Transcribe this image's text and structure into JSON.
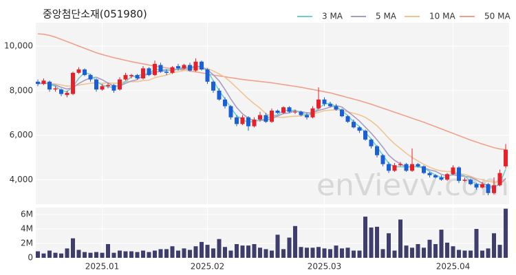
{
  "chart_data": [
    {
      "type": "candlestick",
      "title": "중앙첨단소재(051980)",
      "watermark": "enVievv.com",
      "up_color": "#e8202a",
      "down_color": "#1a5fd6",
      "legend": "top-right",
      "grid": true,
      "open": [
        8400,
        8300,
        8400,
        8050,
        8050,
        7800,
        7850,
        8800,
        8950,
        8700,
        8500,
        8050,
        8200,
        8250,
        8050,
        8500,
        8650,
        8700,
        8550,
        9000,
        8700,
        9150,
        8850,
        8800,
        9100,
        9000,
        9150,
        8900,
        9300,
        8950,
        8400,
        8000,
        7600,
        7300,
        6800,
        6500,
        6800,
        6400,
        6700,
        6900,
        6600,
        7100,
        7000,
        7250,
        7050,
        7050,
        6900,
        6800,
        7200,
        7600,
        7400,
        7300,
        7150,
        6850,
        6600,
        6350,
        6200,
        5800,
        5500,
        5100,
        4700,
        4400,
        4650,
        4700,
        4400,
        4700,
        4600,
        4300,
        4200,
        4100,
        4000,
        4250,
        4550,
        3950,
        4000,
        3800,
        3650,
        3800,
        3400,
        3750,
        4600
      ],
      "high": [
        8500,
        8550,
        8450,
        8200,
        8100,
        8000,
        8850,
        9050,
        9000,
        8750,
        8550,
        8300,
        8350,
        8300,
        8600,
        8800,
        8750,
        8750,
        9100,
        9050,
        9350,
        9250,
        8950,
        9100,
        9200,
        9200,
        9250,
        9450,
        9350,
        9000,
        8450,
        8100,
        7700,
        7350,
        6900,
        6900,
        6850,
        6800,
        7050,
        7000,
        7200,
        7150,
        7300,
        7300,
        7150,
        7100,
        7000,
        7300,
        8150,
        7700,
        7500,
        7400,
        7200,
        6900,
        6700,
        6400,
        6250,
        5850,
        5550,
        5150,
        4800,
        4750,
        4800,
        4750,
        5400,
        4750,
        4650,
        4350,
        4250,
        4200,
        4300,
        4650,
        4600,
        4100,
        4050,
        3850,
        3900,
        3850,
        4100,
        4450,
        5600
      ],
      "low": [
        8200,
        8250,
        7950,
        7950,
        7750,
        7700,
        7800,
        8750,
        8650,
        8400,
        7950,
        8000,
        8100,
        7900,
        8000,
        8450,
        8550,
        8500,
        8500,
        8650,
        8650,
        8800,
        8700,
        8750,
        8900,
        8950,
        8850,
        8850,
        8900,
        8300,
        7900,
        7550,
        7200,
        6700,
        6400,
        6450,
        6200,
        6350,
        6600,
        6550,
        6550,
        6950,
        6950,
        7000,
        6950,
        6850,
        6700,
        6750,
        7150,
        7300,
        7250,
        7100,
        6800,
        6550,
        6300,
        6100,
        5750,
        5400,
        5000,
        4600,
        4300,
        4350,
        4600,
        4350,
        4350,
        4550,
        4250,
        4100,
        4050,
        3950,
        3950,
        4200,
        3850,
        3900,
        3750,
        3550,
        3600,
        3300,
        3350,
        3700,
        4500
      ],
      "close": [
        8300,
        8450,
        8050,
        8100,
        7850,
        7900,
        8800,
        8950,
        8700,
        8500,
        8050,
        8200,
        8250,
        8000,
        8500,
        8700,
        8700,
        8550,
        9000,
        8700,
        9200,
        8850,
        8800,
        9050,
        9000,
        9150,
        8900,
        9300,
        8950,
        8400,
        8000,
        7600,
        7300,
        6800,
        6500,
        6800,
        6400,
        6700,
        6900,
        6600,
        7100,
        7000,
        7250,
        7050,
        7050,
        6900,
        6800,
        7200,
        7600,
        7400,
        7300,
        7150,
        6850,
        6600,
        6350,
        6200,
        5800,
        5500,
        5100,
        4700,
        4400,
        4650,
        4700,
        4400,
        4700,
        4600,
        4300,
        4200,
        4100,
        4000,
        4250,
        4550,
        3950,
        4000,
        3800,
        3650,
        3800,
        3400,
        3750,
        4300,
        5350
      ],
      "series": [
        {
          "name": "3 MA",
          "color": "#6ccfcf",
          "values": [
            8300,
            8380,
            8270,
            8200,
            8000,
            7950,
            8180,
            8550,
            8820,
            8720,
            8420,
            8250,
            8170,
            8150,
            8250,
            8400,
            8630,
            8650,
            8750,
            8750,
            8970,
            8920,
            8950,
            8900,
            8950,
            9070,
            9020,
            9120,
            9050,
            8880,
            8450,
            8000,
            7630,
            7230,
            6870,
            6700,
            6570,
            6630,
            6670,
            6730,
            6870,
            6900,
            7120,
            7100,
            7120,
            7000,
            6920,
            6970,
            7200,
            7400,
            7430,
            7280,
            7100,
            6870,
            6600,
            6380,
            6120,
            5830,
            5470,
            5100,
            4730,
            4580,
            4580,
            4580,
            4600,
            4570,
            4530,
            4370,
            4200,
            4100,
            4120,
            4270,
            4250,
            4170,
            3920,
            3820,
            3750,
            3620,
            3650,
            3820,
            4470
          ]
        },
        {
          "name": "5 MA",
          "color": "#a89bc2",
          "values": [
            8300,
            8350,
            8300,
            8250,
            8150,
            8070,
            8140,
            8320,
            8460,
            8570,
            8600,
            8490,
            8340,
            8200,
            8200,
            8330,
            8430,
            8490,
            8690,
            8730,
            8830,
            8860,
            8910,
            8920,
            8980,
            8970,
            8980,
            9080,
            9060,
            8940,
            8710,
            8440,
            8050,
            7620,
            7240,
            6960,
            6760,
            6640,
            6660,
            6680,
            6740,
            6860,
            6970,
            7000,
            7090,
            7050,
            7010,
            7000,
            7110,
            7180,
            7260,
            7330,
            7260,
            7060,
            6850,
            6630,
            6360,
            6090,
            5790,
            5460,
            5100,
            4870,
            4710,
            4570,
            4570,
            4610,
            4540,
            4440,
            4380,
            4240,
            4170,
            4220,
            4170,
            4150,
            4110,
            3990,
            3840,
            3730,
            3680,
            3780,
            4060
          ]
        },
        {
          "name": "10 MA",
          "color": "#f0c490",
          "values": [
            8300,
            8320,
            8320,
            8300,
            8250,
            8200,
            8210,
            8250,
            8290,
            8330,
            8350,
            8330,
            8350,
            8330,
            8340,
            8420,
            8400,
            8400,
            8450,
            8470,
            8580,
            8640,
            8690,
            8800,
            8850,
            8900,
            8920,
            8990,
            8990,
            9000,
            8880,
            8750,
            8600,
            8380,
            8130,
            7880,
            7630,
            7410,
            7210,
            6960,
            6870,
            6810,
            6800,
            6830,
            6850,
            6860,
            6900,
            6950,
            7020,
            7100,
            7120,
            7140,
            7100,
            7050,
            6980,
            6910,
            6800,
            6630,
            6420,
            6150,
            5860,
            5610,
            5400,
            5180,
            5000,
            4840,
            4690,
            4560,
            4460,
            4390,
            4370,
            4360,
            4280,
            4240,
            4150,
            4050,
            4000,
            3920,
            3890,
            3910,
            4020
          ]
        },
        {
          "name": "50 MA",
          "color": "#f0a08a",
          "values": [
            10550,
            10530,
            10480,
            10400,
            10300,
            10200,
            10100,
            10000,
            9900,
            9800,
            9700,
            9620,
            9550,
            9480,
            9420,
            9360,
            9300,
            9250,
            9200,
            9150,
            9100,
            9060,
            9020,
            8980,
            8950,
            8920,
            8880,
            8840,
            8800,
            8750,
            8700,
            8660,
            8620,
            8580,
            8540,
            8500,
            8470,
            8440,
            8410,
            8380,
            8350,
            8310,
            8270,
            8230,
            8190,
            8150,
            8100,
            8050,
            8000,
            7950,
            7900,
            7830,
            7760,
            7690,
            7620,
            7550,
            7470,
            7390,
            7300,
            7210,
            7120,
            7030,
            6940,
            6850,
            6760,
            6670,
            6580,
            6480,
            6380,
            6280,
            6180,
            6080,
            5980,
            5880,
            5780,
            5690,
            5600,
            5520,
            5440,
            5380,
            5350
          ]
        }
      ],
      "ylim": [
        2900,
        11050
      ],
      "yticks": [
        {
          "value": 4000,
          "label": "4,000"
        },
        {
          "value": 6000,
          "label": "6,000"
        },
        {
          "value": 8000,
          "label": "8,000"
        },
        {
          "value": 10000,
          "label": "10,000"
        }
      ]
    },
    {
      "type": "bar",
      "color": "#3f3d6b",
      "grid": true,
      "categories": [
        null,
        null,
        null,
        null,
        null,
        null,
        null,
        null,
        null,
        null,
        null,
        "2025.01",
        null,
        null,
        null,
        null,
        null,
        null,
        null,
        null,
        null,
        null,
        null,
        null,
        null,
        null,
        null,
        null,
        null,
        "2025.02",
        null,
        null,
        null,
        null,
        null,
        null,
        null,
        null,
        null,
        null,
        null,
        null,
        null,
        null,
        null,
        null,
        null,
        null,
        null,
        "2025.03",
        null,
        null,
        null,
        null,
        null,
        null,
        null,
        null,
        null,
        null,
        null,
        null,
        null,
        null,
        null,
        null,
        null,
        null,
        null,
        null,
        null,
        "2025.04",
        null,
        null,
        null,
        null,
        null,
        null,
        null,
        null,
        null
      ],
      "values": [
        900000,
        600000,
        1000000,
        700000,
        600000,
        1300000,
        2700000,
        1100000,
        800000,
        700000,
        800000,
        700000,
        1900000,
        700000,
        1000000,
        900000,
        900000,
        800000,
        1000000,
        800000,
        1000000,
        1200000,
        1200000,
        1600000,
        1000000,
        1300000,
        1100000,
        1600000,
        2200000,
        1800000,
        1300000,
        2600000,
        1500000,
        1000000,
        1900000,
        1700000,
        1700000,
        1900000,
        1400000,
        1200000,
        1000000,
        3200000,
        1200000,
        2800000,
        4400000,
        1500000,
        1400000,
        1400000,
        1500000,
        1300000,
        1200000,
        1700000,
        1300000,
        1400000,
        1000000,
        1000000,
        5700000,
        4200000,
        4300000,
        1200000,
        3400000,
        1000000,
        5300000,
        1700000,
        1400000,
        1900000,
        1400000,
        2500000,
        1900000,
        3900000,
        2100000,
        1600000,
        1100000,
        1000000,
        1000000,
        4000000,
        1000000,
        1300000,
        3400000,
        1800000,
        6800000
      ],
      "ylim": [
        0,
        6950000
      ],
      "yticks": [
        0,
        {
          "value": 2000000,
          "label": "2M"
        },
        {
          "value": 4000000,
          "label": "4M"
        },
        {
          "value": 6000000,
          "label": "6M"
        }
      ]
    }
  ]
}
